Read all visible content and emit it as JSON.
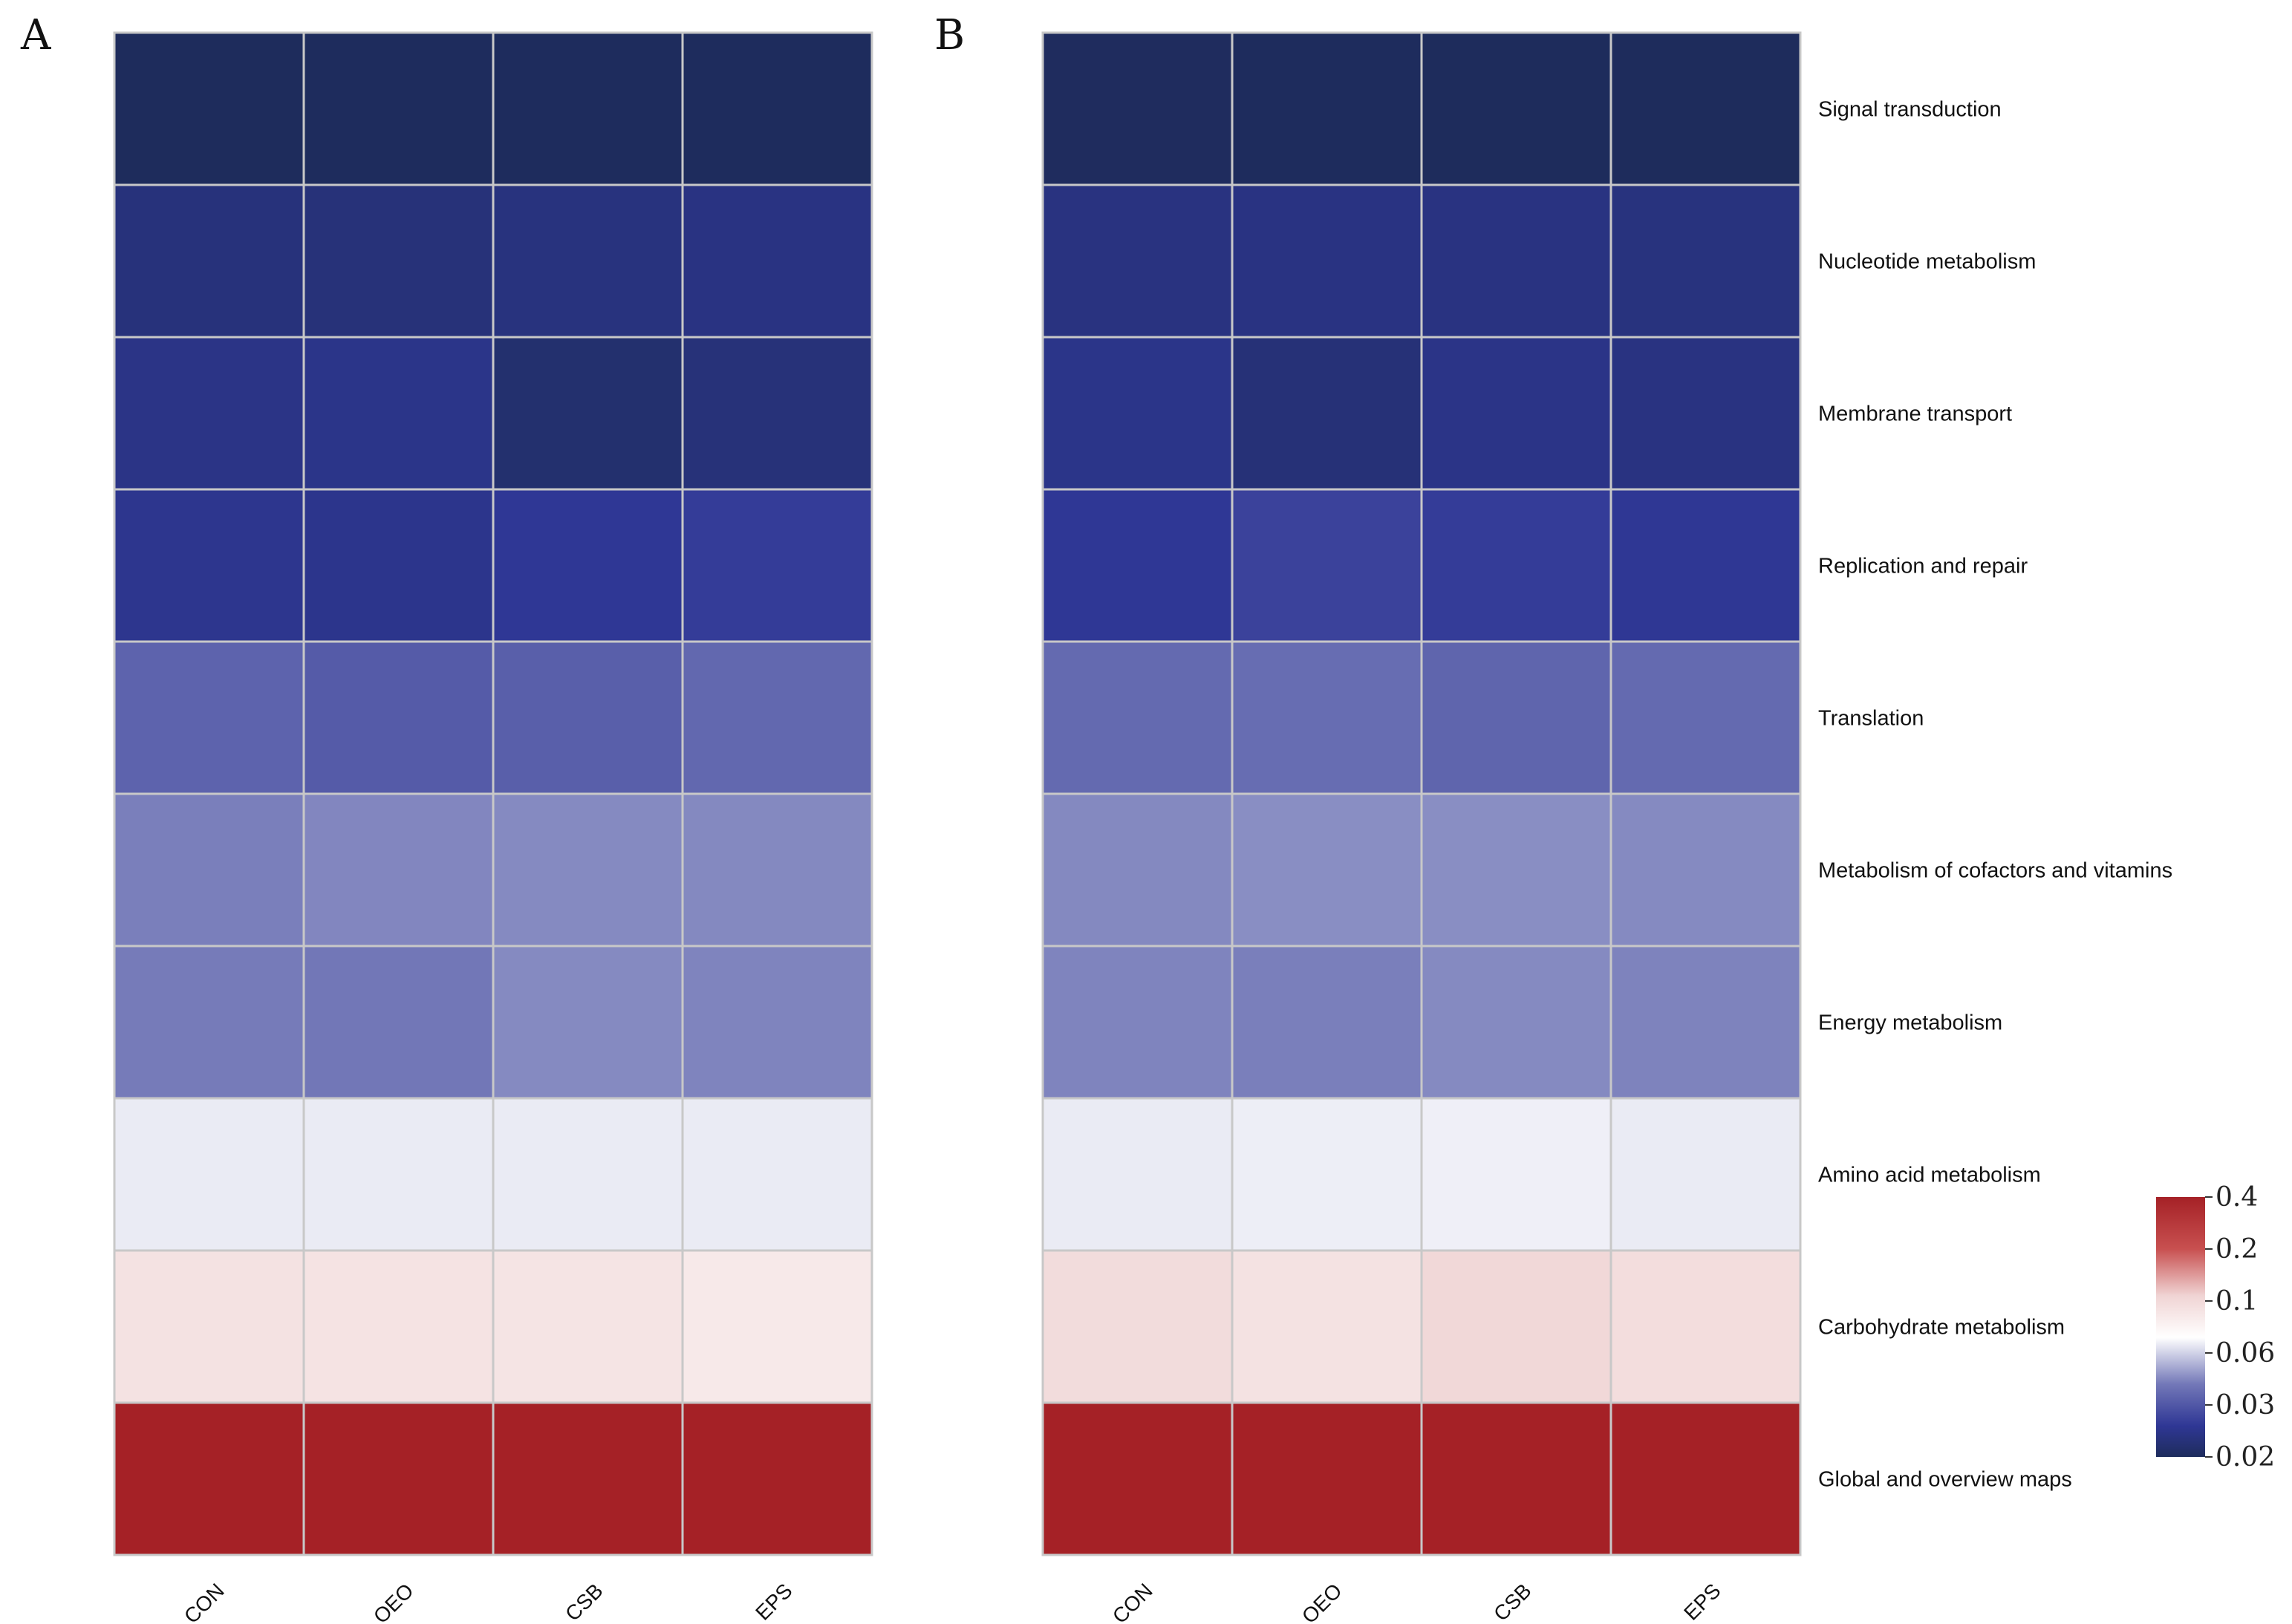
{
  "chart_data": {
    "type": "heatmap",
    "columns": [
      "CON",
      "OEO",
      "CSB",
      "EPS"
    ],
    "rows": [
      "Signal transduction",
      "Nucleotide metabolism",
      "Membrane transport",
      "Replication and repair",
      "Translation",
      "Metabolism of cofactors and vitamins",
      "Energy metabolism",
      "Amino acid metabolism",
      "Carbohydrate metabolism",
      "Global and overview maps"
    ],
    "panels": [
      {
        "label": "A",
        "values": [
          [
            0.02,
            0.0202,
            0.0201,
            0.0201
          ],
          [
            0.025,
            0.0246,
            0.0255,
            0.0262
          ],
          [
            0.027,
            0.0275,
            0.0228,
            0.0245
          ],
          [
            0.0285,
            0.0282,
            0.03,
            0.0305
          ],
          [
            0.035,
            0.034,
            0.0345,
            0.0355
          ],
          [
            0.0385,
            0.0395,
            0.04,
            0.0398
          ],
          [
            0.038,
            0.0375,
            0.04,
            0.0392
          ],
          [
            0.056,
            0.056,
            0.056,
            0.056
          ],
          [
            0.076,
            0.075,
            0.0745,
            0.072
          ],
          [
            0.4,
            0.4,
            0.4,
            0.4
          ]
        ]
      },
      {
        "label": "B",
        "values": [
          [
            0.0203,
            0.0201,
            0.0198,
            0.02
          ],
          [
            0.0258,
            0.0262,
            0.026,
            0.0255
          ],
          [
            0.0275,
            0.0242,
            0.0272,
            0.026
          ],
          [
            0.03,
            0.0312,
            0.0305,
            0.0298
          ],
          [
            0.0358,
            0.0362,
            0.0352,
            0.0358
          ],
          [
            0.0398,
            0.0405,
            0.0405,
            0.04
          ],
          [
            0.0392,
            0.0385,
            0.04,
            0.039
          ],
          [
            0.056,
            0.0565,
            0.0568,
            0.056
          ],
          [
            0.08,
            0.076,
            0.082,
            0.079
          ],
          [
            0.4,
            0.4,
            0.4,
            0.4
          ]
        ]
      }
    ],
    "color_scale": {
      "stops": [
        {
          "value": 0.02,
          "color": "#1e2c5c"
        },
        {
          "value": 0.03,
          "color": "#2f3795"
        },
        {
          "value": 0.06,
          "color": "#ffffff"
        },
        {
          "value": 0.1,
          "color": "#e8c0c0"
        },
        {
          "value": 0.2,
          "color": "#c85050"
        },
        {
          "value": 0.4,
          "color": "#a52126"
        }
      ],
      "ticks": [
        "0.4",
        "0.2",
        "0.1",
        "0.06",
        "0.03",
        "0.02"
      ]
    }
  }
}
